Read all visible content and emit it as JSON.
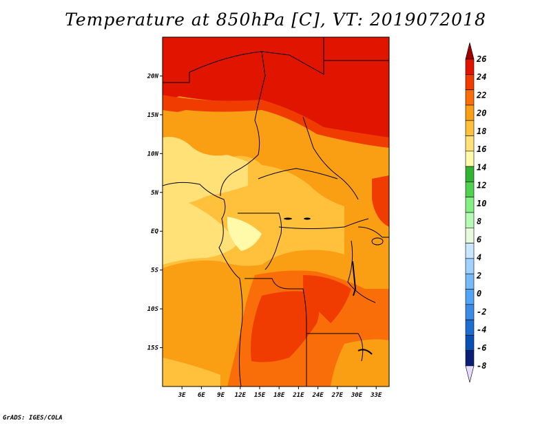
{
  "title": "Temperature at 850hPa [C], VT: 2019072018",
  "credit": "GrADS: IGES/COLA",
  "map": {
    "lat_ticks": [
      {
        "value": 20,
        "label": "20N"
      },
      {
        "value": 15,
        "label": "15N"
      },
      {
        "value": 10,
        "label": "10N"
      },
      {
        "value": 5,
        "label": "5N"
      },
      {
        "value": 0,
        "label": "EQ"
      },
      {
        "value": -5,
        "label": "5S"
      },
      {
        "value": -10,
        "label": "10S"
      },
      {
        "value": -15,
        "label": "15S"
      }
    ],
    "lon_ticks": [
      {
        "value": 3,
        "label": "3E"
      },
      {
        "value": 6,
        "label": "6E"
      },
      {
        "value": 9,
        "label": "9E"
      },
      {
        "value": 12,
        "label": "12E"
      },
      {
        "value": 15,
        "label": "15E"
      },
      {
        "value": 18,
        "label": "18E"
      },
      {
        "value": 21,
        "label": "21E"
      },
      {
        "value": 24,
        "label": "24E"
      },
      {
        "value": 27,
        "label": "27E"
      },
      {
        "value": 30,
        "label": "30E"
      },
      {
        "value": 33,
        "label": "33E"
      }
    ],
    "lon_range": [
      0,
      35
    ],
    "lat_range": [
      -20,
      25
    ]
  },
  "colorbar": {
    "labels": [
      "26",
      "24",
      "22",
      "20",
      "18",
      "16",
      "14",
      "12",
      "10",
      "8",
      "6",
      "4",
      "2",
      "0",
      "-2",
      "-4",
      "-6",
      "-8"
    ],
    "colors": [
      "#a00000",
      "#e11400",
      "#f03c00",
      "#fa6e0a",
      "#fa9f14",
      "#ffc03c",
      "#ffe178",
      "#fffaaa",
      "#32b432",
      "#50d250",
      "#82f082",
      "#b4fab4",
      "#e6fadc",
      "#c8e6ff",
      "#a0d2ff",
      "#78b9fa",
      "#50a5f5",
      "#3c8ce6",
      "#1e6ed2",
      "#0a50b4",
      "#0a1e78",
      "#e6dcff"
    ]
  }
}
